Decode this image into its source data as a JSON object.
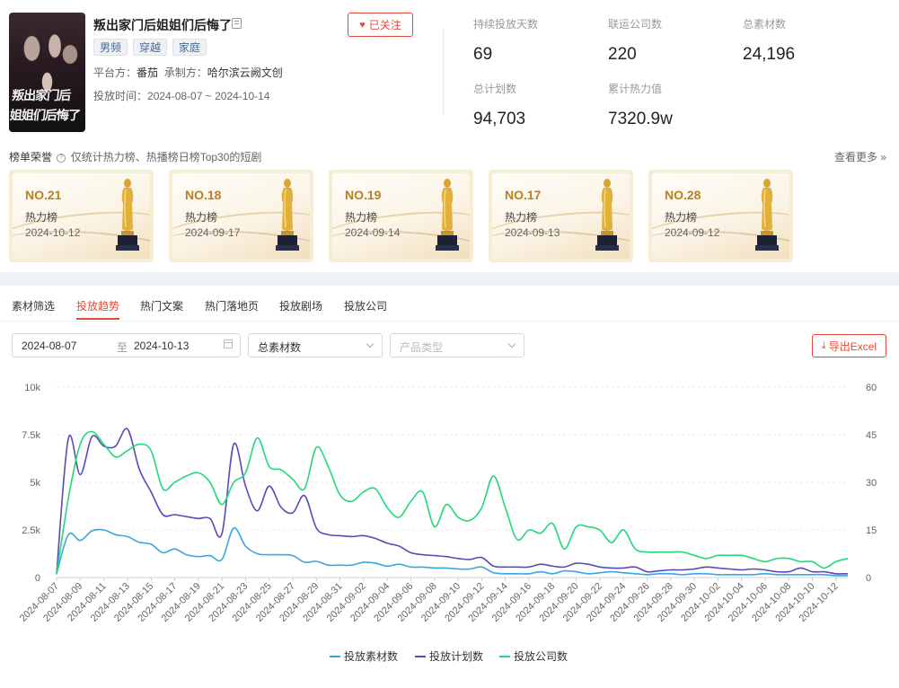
{
  "drama": {
    "poster_text": "叛出家门后 姐姐们后悔了",
    "title": "叛出家门后姐姐们后悔了",
    "tags": [
      "男频",
      "穿越",
      "家庭"
    ],
    "platform_label": "平台方：",
    "platform": "番茄",
    "producer_label": "承制方：",
    "producer": "哈尔滨云阙文创",
    "period_label": "投放时间：",
    "period": "2024-08-07 ~ 2024-10-14",
    "follow_label": "已关注"
  },
  "stats": [
    {
      "label": "持续投放天数",
      "value": "69"
    },
    {
      "label": "联运公司数",
      "value": "220"
    },
    {
      "label": "总素材数",
      "value": "24,196"
    },
    {
      "label": "总计划数",
      "value": "94,703"
    },
    {
      "label": "累计热力值",
      "value": "7320.9w"
    }
  ],
  "honors": {
    "title": "榜单荣誉",
    "note": "仅统计热力榜、热播榜日榜Top30的短剧",
    "more": "查看更多 »",
    "cards": [
      {
        "rank": "NO.21",
        "board": "热力榜",
        "date": "2024-10-12"
      },
      {
        "rank": "NO.18",
        "board": "热力榜",
        "date": "2024-09-17"
      },
      {
        "rank": "NO.19",
        "board": "热力榜",
        "date": "2024-09-14"
      },
      {
        "rank": "NO.17",
        "board": "热力榜",
        "date": "2024-09-13"
      },
      {
        "rank": "NO.28",
        "board": "热力榜",
        "date": "2024-09-12"
      }
    ]
  },
  "tabs": [
    "素材筛选",
    "投放趋势",
    "热门文案",
    "热门落地页",
    "投放剧场",
    "投放公司"
  ],
  "active_tab": 1,
  "filters": {
    "start_date": "2024-08-07",
    "to": "至",
    "end_date": "2024-10-13",
    "metric_select": "总素材数",
    "product_placeholder": "产品类型",
    "export_label": "导出Excel"
  },
  "chart_data": {
    "type": "line",
    "x": [
      "2024-08-07",
      "2024-08-08",
      "2024-08-09",
      "2024-08-10",
      "2024-08-11",
      "2024-08-12",
      "2024-08-13",
      "2024-08-14",
      "2024-08-15",
      "2024-08-16",
      "2024-08-17",
      "2024-08-18",
      "2024-08-19",
      "2024-08-20",
      "2024-08-21",
      "2024-08-22",
      "2024-08-23",
      "2024-08-24",
      "2024-08-25",
      "2024-08-26",
      "2024-08-27",
      "2024-08-28",
      "2024-08-29",
      "2024-08-30",
      "2024-08-31",
      "2024-09-01",
      "2024-09-02",
      "2024-09-03",
      "2024-09-04",
      "2024-09-05",
      "2024-09-06",
      "2024-09-07",
      "2024-09-08",
      "2024-09-09",
      "2024-09-10",
      "2024-09-11",
      "2024-09-12",
      "2024-09-13",
      "2024-09-14",
      "2024-09-15",
      "2024-09-16",
      "2024-09-17",
      "2024-09-18",
      "2024-09-19",
      "2024-09-20",
      "2024-09-21",
      "2024-09-22",
      "2024-09-23",
      "2024-09-24",
      "2024-09-25",
      "2024-09-26",
      "2024-09-27",
      "2024-09-28",
      "2024-09-29",
      "2024-09-30",
      "2024-10-01",
      "2024-10-02",
      "2024-10-03",
      "2024-10-04",
      "2024-10-05",
      "2024-10-06",
      "2024-10-07",
      "2024-10-08",
      "2024-10-09",
      "2024-10-10",
      "2024-10-11",
      "2024-10-12",
      "2024-10-13"
    ],
    "x_tick_labels": [
      "2024-08-07",
      "2024-08-09",
      "2024-08-11",
      "2024-08-13",
      "2024-08-15",
      "2024-08-17",
      "2024-08-19",
      "2024-08-21",
      "2024-08-23",
      "2024-08-25",
      "2024-08-27",
      "2024-08-29",
      "2024-08-31",
      "2024-09-02",
      "2024-09-04",
      "2024-09-06",
      "2024-09-08",
      "2024-09-10",
      "2024-09-12",
      "2024-09-14",
      "2024-09-16",
      "2024-09-18",
      "2024-09-20",
      "2024-09-22",
      "2024-09-24",
      "2024-09-26",
      "2024-09-28",
      "2024-09-30",
      "2024-10-02",
      "2024-10-04",
      "2024-10-06",
      "2024-10-08",
      "2024-10-10",
      "2024-10-12"
    ],
    "y_left": {
      "ticks": [
        "0",
        "2.5k",
        "5k",
        "7.5k",
        "10k"
      ],
      "lim": [
        0,
        10000
      ]
    },
    "y_right": {
      "ticks": [
        "0",
        "15",
        "30",
        "45",
        "60"
      ],
      "lim": [
        0,
        60
      ]
    },
    "grid": true,
    "legend_position": "bottom",
    "series": [
      {
        "name": "投放素材数",
        "axis": "left",
        "color": "#38a6e0",
        "values": [
          200,
          2250,
          1950,
          2450,
          2500,
          2250,
          2150,
          1850,
          1750,
          1300,
          1500,
          1200,
          1100,
          1150,
          950,
          2600,
          1650,
          1250,
          1200,
          1200,
          1150,
          800,
          850,
          650,
          650,
          650,
          800,
          750,
          600,
          700,
          550,
          550,
          500,
          500,
          450,
          450,
          550,
          250,
          200,
          200,
          200,
          300,
          200,
          350,
          300,
          200,
          250,
          300,
          250,
          200,
          150,
          200,
          200,
          150,
          200,
          200,
          150,
          150,
          150,
          150,
          200,
          150,
          150,
          150,
          150,
          150,
          100,
          100
        ]
      },
      {
        "name": "投放计划数",
        "axis": "left",
        "color": "#5a4ab8",
        "values": [
          200,
          7300,
          5400,
          7400,
          6900,
          6900,
          7800,
          5700,
          4500,
          3300,
          3300,
          3200,
          3100,
          3100,
          2300,
          7000,
          4800,
          3500,
          4800,
          3700,
          3400,
          4300,
          2600,
          2250,
          2200,
          2150,
          2200,
          2050,
          1800,
          1650,
          1300,
          1200,
          1150,
          1100,
          1000,
          950,
          1050,
          600,
          550,
          550,
          550,
          700,
          600,
          550,
          750,
          700,
          550,
          500,
          500,
          550,
          300,
          350,
          400,
          400,
          450,
          550,
          500,
          450,
          400,
          450,
          400,
          300,
          300,
          500,
          300,
          300,
          200,
          200
        ]
      },
      {
        "name": "投放公司数",
        "axis": "right",
        "color": "#22d87a",
        "values": [
          1,
          25,
          42,
          46,
          42,
          38,
          40,
          42,
          40,
          28,
          30,
          32,
          33,
          30,
          23,
          30,
          33,
          44,
          35,
          34,
          31,
          28,
          41,
          35,
          26,
          24,
          27,
          28,
          22,
          19,
          24,
          27,
          16,
          23,
          19,
          18,
          22,
          32,
          22,
          12,
          15,
          14,
          17,
          9,
          16,
          16,
          15,
          11,
          15,
          9,
          8,
          8,
          8,
          8,
          7,
          6,
          7,
          7,
          7,
          6,
          5,
          6,
          6,
          5,
          5,
          3,
          5,
          6
        ]
      }
    ]
  }
}
